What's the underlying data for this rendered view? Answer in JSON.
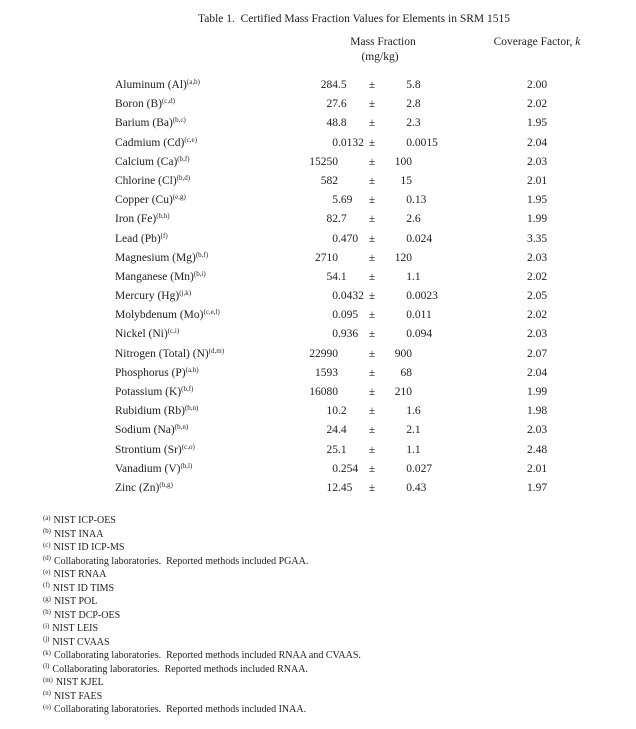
{
  "title": "Table 1.  Certified Mass Fraction Values for Elements in SRM 1515",
  "table": {
    "header": {
      "mass_fraction_line1": "Mass Fraction",
      "mass_fraction_line2": "(mg/kg)",
      "coverage_prefix": "Coverage Factor, ",
      "coverage_k": "k"
    },
    "plus_minus": "±",
    "rows": [
      {
        "element": "Aluminum (Al)",
        "refs": "(a,b)",
        "value": "284.5",
        "uncertainty": "5.8",
        "k": "2.00"
      },
      {
        "element": "Boron (B)",
        "refs": "(c,d)",
        "value": "27.6",
        "uncertainty": "2.8",
        "k": "2.02"
      },
      {
        "element": "Barium (Ba)",
        "refs": "(b,c)",
        "value": "48.8",
        "uncertainty": "2.3",
        "k": "1.95"
      },
      {
        "element": "Cadmium (Cd)",
        "refs": "(c,e)",
        "value": "0.0132",
        "uncertainty": "0.0015",
        "k": "2.04"
      },
      {
        "element": "Calcium (Ca)",
        "refs": "(b,f)",
        "value": "15250",
        "uncertainty": "100",
        "k": "2.03"
      },
      {
        "element": "Chlorine (Cl)",
        "refs": "(b,d)",
        "value": "582",
        "uncertainty": "15",
        "k": "2.01"
      },
      {
        "element": "Copper (Cu)",
        "refs": "(e,g)",
        "value": "5.69",
        "uncertainty": "0.13",
        "k": "1.95"
      },
      {
        "element": "Iron (Fe)",
        "refs": "(b,h)",
        "value": "82.7",
        "uncertainty": "2.6",
        "k": "1.99"
      },
      {
        "element": "Lead (Pb)",
        "refs": "(f)",
        "value": "0.470",
        "uncertainty": "0.024",
        "k": "3.35"
      },
      {
        "element": "Magnesium (Mg)",
        "refs": "(b,f)",
        "value": "2710",
        "uncertainty": "120",
        "k": "2.03"
      },
      {
        "element": "Manganese (Mn)",
        "refs": "(b,i)",
        "value": "54.1",
        "uncertainty": "1.1",
        "k": "2.02"
      },
      {
        "element": "Mercury (Hg)",
        "refs": "(j,k)",
        "value": "0.0432",
        "uncertainty": "0.0023",
        "k": "2.05"
      },
      {
        "element": "Molybdenum (Mo)",
        "refs": "(c,e,l)",
        "value": "0.095",
        "uncertainty": "0.011",
        "k": "2.02"
      },
      {
        "element": "Nickel (Ni)",
        "refs": "(c,i)",
        "value": "0.936",
        "uncertainty": "0.094",
        "k": "2.03"
      },
      {
        "element": "Nitrogen (Total) (N)",
        "refs": "(d,m)",
        "value": "22990",
        "uncertainty": "900",
        "k": "2.07"
      },
      {
        "element": "Phosphorus (P)",
        "refs": "(a,h)",
        "value": "1593",
        "uncertainty": "68",
        "k": "2.04"
      },
      {
        "element": "Potassium (K)",
        "refs": "(b,f)",
        "value": "16080",
        "uncertainty": "210",
        "k": "1.99"
      },
      {
        "element": "Rubidium (Rb)",
        "refs": "(b,n)",
        "value": "10.2",
        "uncertainty": "1.6",
        "k": "1.98"
      },
      {
        "element": "Sodium (Na)",
        "refs": "(b,n)",
        "value": "24.4",
        "uncertainty": "2.1",
        "k": "2.03"
      },
      {
        "element": "Strontium (Sr)",
        "refs": "(c,o)",
        "value": "25.1",
        "uncertainty": "1.1",
        "k": "2.48"
      },
      {
        "element": "Vanadium (V)",
        "refs": "(b,l)",
        "value": "0.254",
        "uncertainty": "0.027",
        "k": "2.01"
      },
      {
        "element": "Zinc (Zn)",
        "refs": "(b,g)",
        "value": "12.45",
        "uncertainty": "0.43",
        "k": "1.97"
      }
    ]
  },
  "footnotes": [
    {
      "marker": "(a)",
      "text": "NIST ICP-OES"
    },
    {
      "marker": "(b)",
      "text": "NIST INAA"
    },
    {
      "marker": "(c)",
      "text": "NIST ID ICP-MS"
    },
    {
      "marker": "(d)",
      "text": "Collaborating laboratories.  Reported methods included PGAA."
    },
    {
      "marker": "(e)",
      "text": "NIST RNAA"
    },
    {
      "marker": "(f)",
      "text": "NIST ID TIMS"
    },
    {
      "marker": "(g)",
      "text": "NIST POL"
    },
    {
      "marker": "(h)",
      "text": "NIST DCP-OES"
    },
    {
      "marker": "(i)",
      "text": "NIST LEIS"
    },
    {
      "marker": "(j)",
      "text": "NIST CVAAS"
    },
    {
      "marker": "(k)",
      "text": "Collaborating laboratories.  Reported methods included RNAA and CVAAS."
    },
    {
      "marker": "(l)",
      "text": "Collaborating laboratories.  Reported methods included RNAA."
    },
    {
      "marker": "(m)",
      "text": "NIST KJEL"
    },
    {
      "marker": "(n)",
      "text": "NIST FAES"
    },
    {
      "marker": "(o)",
      "text": "Collaborating laboratories.  Reported methods included INAA."
    }
  ]
}
